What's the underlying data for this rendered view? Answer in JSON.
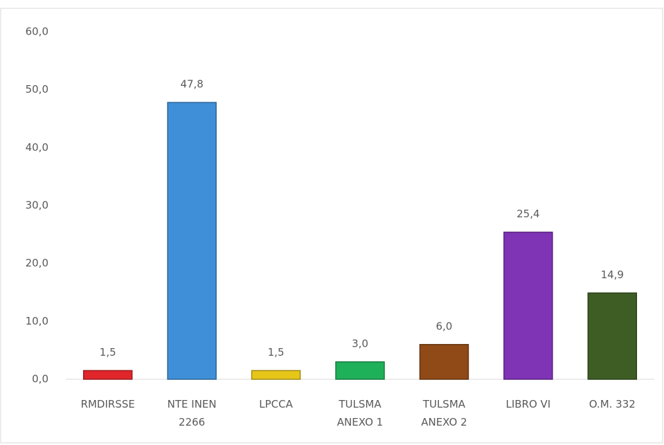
{
  "chart_data": {
    "type": "bar",
    "categories": [
      "RMDIRSSE",
      "NTE INEN 2266",
      "LPCCA",
      "TULSMA ANEXO 1",
      "TULSMA ANEXO 2",
      "LIBRO VI",
      "O.M. 332"
    ],
    "values": [
      1.5,
      47.8,
      1.5,
      3.0,
      6.0,
      25.4,
      14.9
    ],
    "value_labels": [
      "1,5",
      "47,8",
      "1,5",
      "3,0",
      "6,0",
      "25,4",
      "14,9"
    ],
    "colors": [
      "#e0262b",
      "#3f8fd8",
      "#e6c619",
      "#1fb05a",
      "#8f4a17",
      "#7f33b5",
      "#3e5d24"
    ],
    "ylim": [
      0,
      60
    ],
    "yticks": [
      {
        "value": 0,
        "label": "0,0"
      },
      {
        "value": 10,
        "label": "10,0"
      },
      {
        "value": 20,
        "label": "20,0"
      },
      {
        "value": 30,
        "label": "30,0"
      },
      {
        "value": 40,
        "label": "40,0"
      },
      {
        "value": 50,
        "label": "50,0"
      },
      {
        "value": 60,
        "label": "60,0"
      }
    ],
    "grid": false
  }
}
